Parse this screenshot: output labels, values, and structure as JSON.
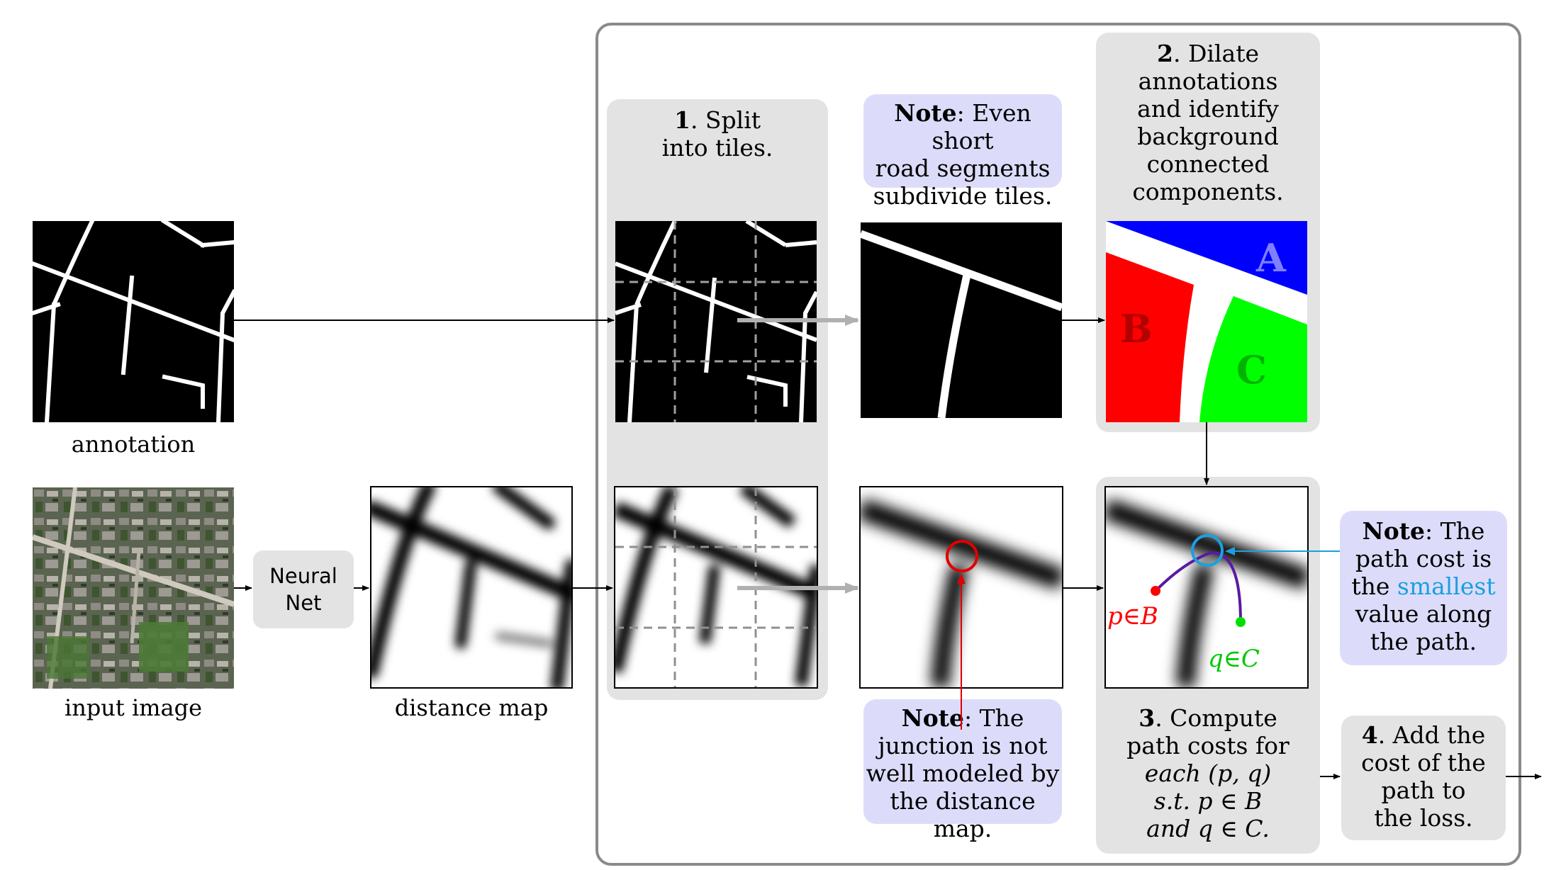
{
  "captions": {
    "annotation": "annotation",
    "input_image": "input image",
    "distance_map": "distance map"
  },
  "neural_net": {
    "line1": "Neural",
    "line2": "Net"
  },
  "step1": {
    "num": "1",
    "rest": ". Split",
    "line2": "into tiles."
  },
  "step2": {
    "num": "2",
    "rest": ". Dilate",
    "lines": [
      "annotations",
      "and identify",
      "background",
      "connected",
      "components."
    ],
    "labels": {
      "a": "A",
      "b": "B",
      "c": "C"
    }
  },
  "step3": {
    "num": "3",
    "rest": ". Compute",
    "line2": "path costs for",
    "line3": "each (p, q)",
    "line4": "s.t. p ∈ B",
    "line5": "and q ∈ C."
  },
  "step4": {
    "num": "4",
    "rest": ". Add the",
    "line2": "cost of the",
    "line3": "path to",
    "line4": "the loss."
  },
  "note_top": {
    "bold": "Note",
    "rest": ": Even short",
    "line2": "road segments",
    "line3": "subdivide tiles."
  },
  "note_junction": {
    "bold": "Note",
    "rest": ": The",
    "line2": "junction is not",
    "line3": "well modeled by",
    "line4": "the distance map."
  },
  "note_path": {
    "bold": "Note",
    "rest": ": The",
    "line2": "path cost is",
    "line3_pre": "the ",
    "line3_hl": "smallest",
    "line4": "value along",
    "line5": "the path."
  },
  "path_labels": {
    "p": "p∈B",
    "q": "q∈C"
  },
  "colors": {
    "panel_gray": "#e3e3e3",
    "note_lavender": "#dcdcfa",
    "frame": "#8a8a8a",
    "region_a": "#0000ff",
    "region_b": "#ff0000",
    "region_c": "#00ff00",
    "label_a": "#7f7fff",
    "label_b": "#b30000",
    "label_c": "#00b300",
    "junction_circle": "#e00000",
    "path_circle": "#1aa0e0",
    "highlight": "#1aa0e0",
    "path_line": "#5a1aa0",
    "p_point": "#ff0000",
    "q_point": "#00e000"
  },
  "icons": [
    "arrow-right-icon",
    "arrow-down-icon"
  ]
}
